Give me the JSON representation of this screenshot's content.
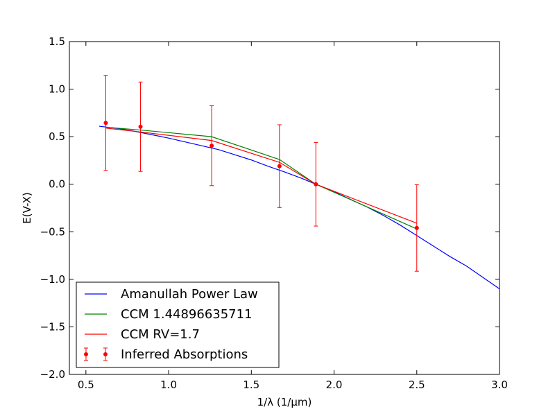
{
  "chart_data": {
    "type": "line",
    "title": "",
    "xlabel": "1/λ (1/μm)",
    "ylabel": "E(V-X)",
    "xlim": [
      0.4,
      3.0
    ],
    "ylim": [
      -2.0,
      1.5
    ],
    "xticks": [
      0.5,
      1.0,
      1.5,
      2.0,
      2.5,
      3.0
    ],
    "yticks": [
      1.5,
      1.0,
      0.5,
      0.0,
      -0.5,
      -1.0,
      -1.5,
      -2.0
    ],
    "xtick_labels": [
      "0.5",
      "1.0",
      "1.5",
      "2.0",
      "2.5",
      "3.0"
    ],
    "ytick_labels": [
      "1.5",
      "1.0",
      "0.5",
      "0.0",
      "−0.5",
      "−1.0",
      "−1.5",
      "−2.0"
    ],
    "grid": false,
    "legend_position": "lower-left",
    "series": [
      {
        "name": "Amanullah Power Law",
        "kind": "line",
        "color": "#0000ff",
        "x": [
          0.58,
          0.7,
          0.8,
          0.9,
          1.0,
          1.1,
          1.2,
          1.3,
          1.4,
          1.5,
          1.6,
          1.7,
          1.8,
          1.89,
          2.0,
          2.1,
          2.2,
          2.3,
          2.4,
          2.5,
          2.6,
          2.7,
          2.8,
          2.9,
          3.0
        ],
        "y": [
          0.61,
          0.585,
          0.555,
          0.52,
          0.485,
          0.445,
          0.405,
          0.365,
          0.31,
          0.255,
          0.19,
          0.13,
          0.065,
          0.0,
          -0.08,
          -0.16,
          -0.24,
          -0.33,
          -0.43,
          -0.54,
          -0.65,
          -0.76,
          -0.86,
          -0.98,
          -1.1
        ]
      },
      {
        "name": "CCM 1.44896635711",
        "kind": "line",
        "color": "#008000",
        "x": [
          0.62,
          0.83,
          1.26,
          1.67,
          1.89,
          2.5
        ],
        "y": [
          0.6,
          0.57,
          0.5,
          0.26,
          0.0,
          -0.47
        ]
      },
      {
        "name": "CCM RV=1.7",
        "kind": "line",
        "color": "#ff0000",
        "x": [
          0.62,
          0.83,
          1.26,
          1.67,
          1.89,
          2.5
        ],
        "y": [
          0.59,
          0.55,
          0.46,
          0.23,
          0.0,
          -0.41
        ]
      },
      {
        "name": "Inferred Absorptions",
        "kind": "errorbar",
        "color": "#ff0000",
        "x": [
          0.62,
          0.83,
          1.26,
          1.67,
          1.89,
          2.5
        ],
        "y": [
          0.645,
          0.605,
          0.405,
          0.19,
          0.0,
          -0.46
        ],
        "yerr": [
          0.5,
          0.47,
          0.42,
          0.435,
          0.44,
          0.455
        ]
      }
    ]
  }
}
